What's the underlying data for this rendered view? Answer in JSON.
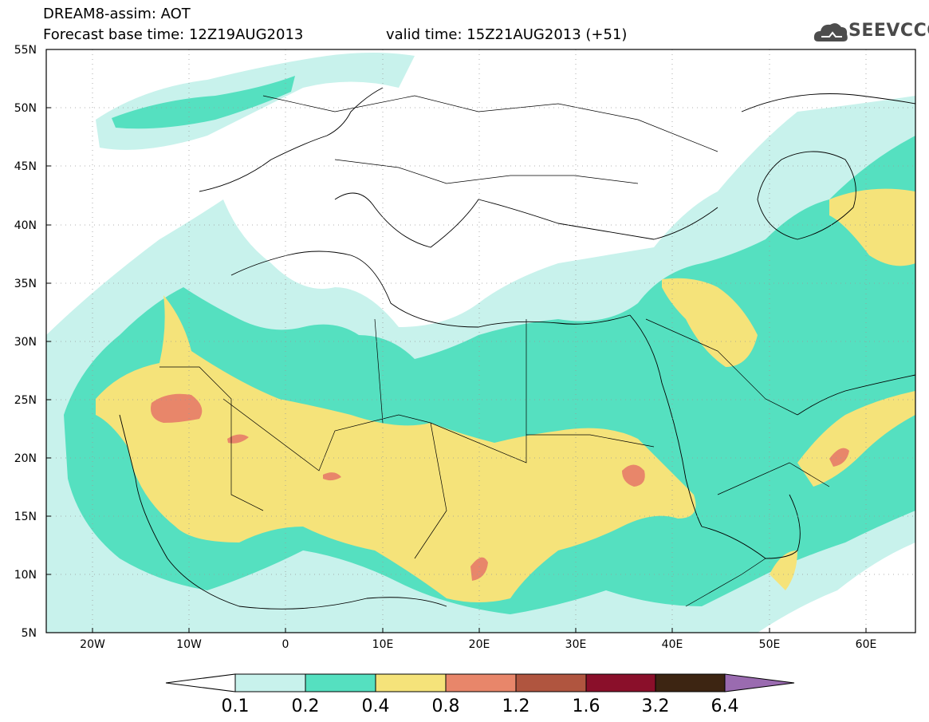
{
  "header": {
    "line1": "DREAM8-assim: AOT",
    "line2": "Forecast base time: 12Z19AUG2013",
    "line2b": "valid time: 15Z21AUG2013 (+51)",
    "logo_text": "SEEVCCC"
  },
  "map": {
    "variable": "AOT",
    "lon_range": [
      -25,
      65
    ],
    "lat_range": [
      5,
      55
    ],
    "lat_ticks": [
      "5N",
      "10N",
      "15N",
      "20N",
      "25N",
      "30N",
      "35N",
      "40N",
      "45N",
      "50N",
      "55N"
    ],
    "lon_ticks": [
      "20W",
      "10W",
      "0",
      "10E",
      "20E",
      "30E",
      "40E",
      "50E",
      "60E"
    ],
    "grid": "dotted",
    "colors": {
      "c01": "#c8f2ec",
      "c02": "#55e0c0",
      "c04": "#f5e37a",
      "c08": "#e8866a",
      "c12": "#b0553f",
      "c16": "#8a0f2a",
      "c32": "#3d2512",
      "c64": "#9a6bb0"
    }
  },
  "colorbar": {
    "labels": [
      "0.1",
      "0.2",
      "0.4",
      "0.8",
      "1.2",
      "1.6",
      "3.2",
      "6.4"
    ]
  }
}
